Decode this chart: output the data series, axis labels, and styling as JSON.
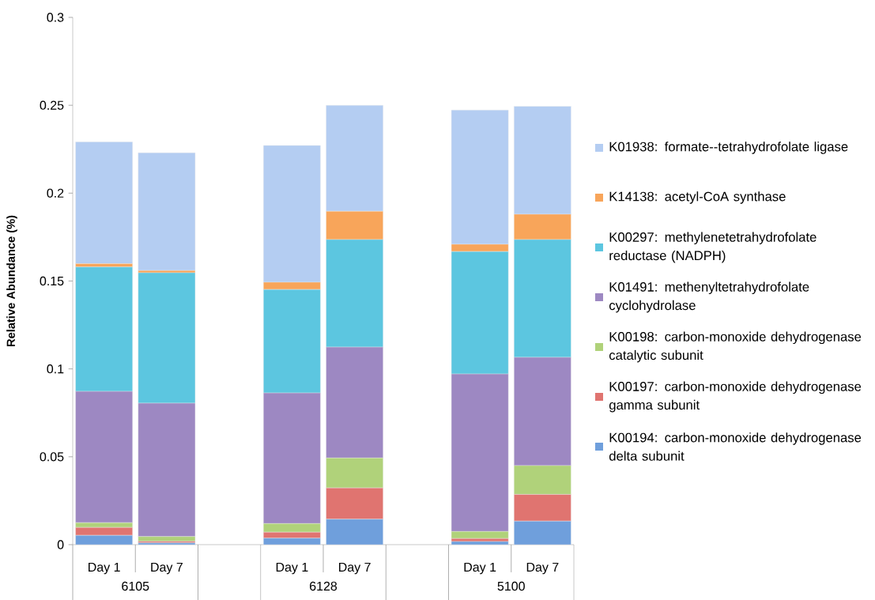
{
  "chart_data": {
    "type": "bar",
    "stacked": true,
    "ylabel": "Relative Abundance (%)",
    "categories": [
      "Day 1",
      "Day 7",
      null,
      "Day 1",
      "Day 7",
      null,
      "Day 1",
      "Day 7"
    ],
    "annotations": [
      "6105",
      "6128",
      "5100"
    ],
    "ylim": [
      0,
      0.3
    ],
    "yticks": [
      0,
      0.05,
      0.1,
      0.15,
      0.2,
      0.25,
      0.3
    ],
    "legend": "right",
    "series": [
      {
        "name": "K00194: carbon-monoxide dehydrogenase delta subunit",
        "color": "#6f9fdc",
        "values": [
          0.0053,
          0.001,
          null,
          0.0037,
          0.0145,
          null,
          0.0018,
          0.0134
        ]
      },
      {
        "name": "K00197: carbon-monoxide dehydrogenase gamma subunit",
        "color": "#e07470",
        "values": [
          0.0045,
          0.0009,
          null,
          0.0034,
          0.0178,
          null,
          0.0017,
          0.0152
        ]
      },
      {
        "name": "K00198: carbon-monoxide dehydrogenase catalytic subunit",
        "color": "#b0d27a",
        "values": [
          0.0027,
          0.0027,
          null,
          0.0049,
          0.017,
          null,
          0.004,
          0.0164
        ]
      },
      {
        "name": "K01491: methenyltetrahydrofolate cyclohydrolase",
        "color": "#9d88c2",
        "values": [
          0.0747,
          0.0759,
          null,
          0.0743,
          0.0631,
          null,
          0.0896,
          0.0616
        ]
      },
      {
        "name": "K00297: methylenetetrahydrofolate reductase (NADPH)",
        "color": "#5cc6e0",
        "values": [
          0.0708,
          0.0742,
          null,
          0.0589,
          0.0612,
          null,
          0.0697,
          0.067
        ]
      },
      {
        "name": "K14138: acetyl-CoA synthase",
        "color": "#f8a55a",
        "values": [
          0.0019,
          0.0013,
          null,
          0.0041,
          0.0161,
          null,
          0.0041,
          0.0144
        ]
      },
      {
        "name": "K01938: formate--tetrahydrofolate ligase",
        "color": "#b4cdf2",
        "values": [
          0.0693,
          0.067,
          null,
          0.0778,
          0.0603,
          null,
          0.0764,
          0.0614
        ]
      }
    ]
  }
}
